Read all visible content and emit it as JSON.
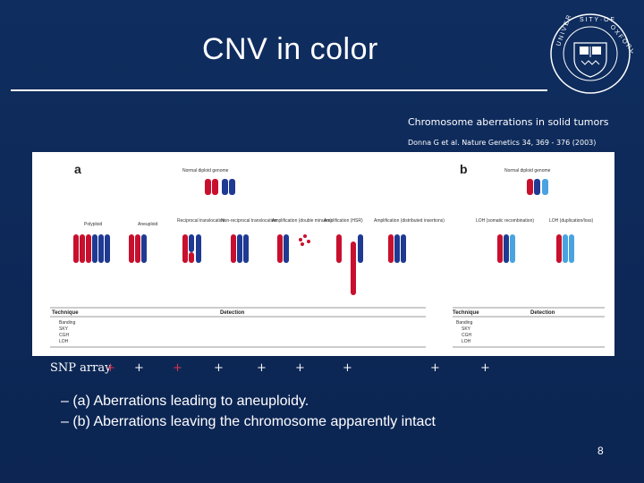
{
  "slide": {
    "title": "CNV in color",
    "citation": {
      "title": "Chromosome aberrations in solid tumors",
      "reference": "Donna G et al. Nature Genetics 34, 369 - 376 (2003)"
    },
    "figure": {
      "panel_a_label": "a",
      "panel_b_label": "b",
      "normal_label": "Normal diploid genome",
      "columns_a": [
        "Polyploid",
        "Aneuploid",
        "Reciprocal translocation",
        "Non-reciprocal translocation",
        "Amplification (double minutes)",
        "Amplification (HSR)",
        "Amplification (distributed insertions)"
      ],
      "columns_b": [
        "LOH (somatic recombination)",
        "LOH (duplication/loss)"
      ],
      "table_headers": {
        "technique": "Technique",
        "detection": "Detection"
      },
      "techniques": [
        "Banding",
        "SKY",
        "CGH",
        "LOH"
      ]
    },
    "snp_label": "SNP array",
    "snp_marks": [
      "+",
      "+",
      "+",
      "+",
      "+",
      "+",
      "+",
      "+",
      "+"
    ],
    "bullets": [
      "(a) Aberrations leading to aneuploidy.",
      "(b) Aberrations leaving the chromosome apparently intact"
    ],
    "page_number": "8",
    "colors": {
      "background": "#0e2a5a",
      "chromosome_red": "#c8102e",
      "chromosome_blue": "#1f3a93",
      "chromosome_light": "#4aa3df"
    }
  }
}
